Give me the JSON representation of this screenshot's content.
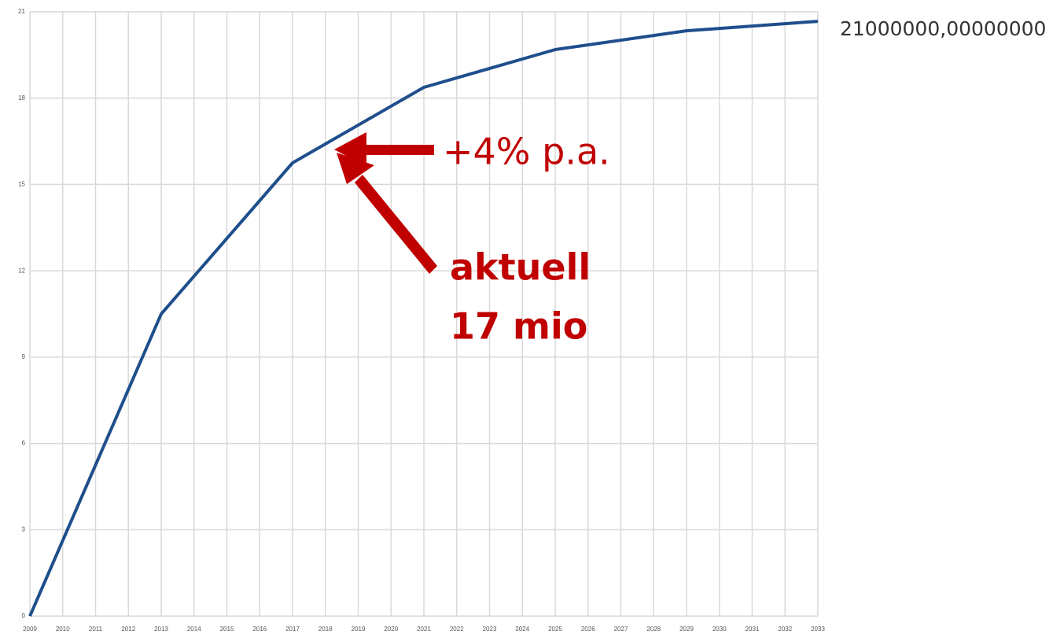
{
  "chart_data": {
    "type": "line",
    "x": [
      2009,
      2013,
      2017,
      2021,
      2025,
      2029,
      2033
    ],
    "values": [
      0,
      10.5,
      15.75,
      18.375,
      19.6875,
      20.34,
      20.67
    ],
    "color": "#1f4e8c",
    "xlim": [
      2009,
      2033
    ],
    "xticks": [
      2009,
      2010,
      2011,
      2012,
      2013,
      2014,
      2015,
      2016,
      2017,
      2018,
      2019,
      2020,
      2021,
      2022,
      2023,
      2024,
      2025,
      2026,
      2027,
      2028,
      2029,
      2030,
      2031,
      2032,
      2033
    ],
    "ylim": [
      0,
      21
    ],
    "yticks": [
      0,
      3,
      6,
      9,
      12,
      15,
      18,
      21
    ],
    "grid": true,
    "annotations": [
      "21000000,00000000",
      "+4% p.a.",
      "aktuell",
      "17 mio"
    ]
  }
}
